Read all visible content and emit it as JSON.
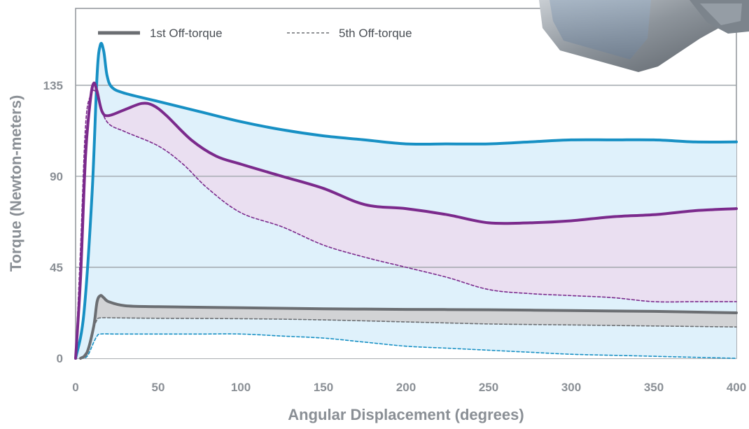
{
  "chart_data": {
    "type": "line",
    "title": "",
    "xlabel": "Angular Displacement (degrees)",
    "ylabel": "Torque (Newton-meters)",
    "xlim": [
      0,
      400
    ],
    "ylim": [
      0,
      135
    ],
    "x_ticks": [
      "0",
      "50",
      "100",
      "150",
      "200",
      "250",
      "300",
      "350",
      "400"
    ],
    "y_ticks": [
      "0",
      "45",
      "90",
      "135"
    ],
    "grid": "horizontal",
    "legend": {
      "placement": "top-left",
      "items": [
        {
          "label": "1st Off-torque",
          "style": "solid"
        },
        {
          "label": "5th Off-torque",
          "style": "dashed"
        }
      ]
    },
    "colors": {
      "blue": "#1790c4",
      "purple": "#7b2a8c",
      "gray": "#6b6e72"
    },
    "series": [
      {
        "color": "#1790c4",
        "style": "solid",
        "fill": "#dff1fb",
        "points": [
          [
            0,
            0
          ],
          [
            5,
            22
          ],
          [
            10,
            82
          ],
          [
            13,
            140
          ],
          [
            15,
            155
          ],
          [
            17,
            152
          ],
          [
            19,
            140
          ],
          [
            22,
            134
          ],
          [
            30,
            131
          ],
          [
            50,
            127
          ],
          [
            75,
            122
          ],
          [
            100,
            117
          ],
          [
            125,
            113
          ],
          [
            150,
            110
          ],
          [
            175,
            108
          ],
          [
            200,
            106
          ],
          [
            225,
            106
          ],
          [
            250,
            106
          ],
          [
            275,
            107
          ],
          [
            300,
            108
          ],
          [
            325,
            108
          ],
          [
            350,
            108
          ],
          [
            375,
            107
          ],
          [
            400,
            107
          ]
        ]
      },
      {
        "color": "#1790c4",
        "style": "dashed",
        "fill_to": 0,
        "points": [
          [
            3,
            0
          ],
          [
            7,
            1
          ],
          [
            11,
            8
          ],
          [
            13,
            11
          ],
          [
            15,
            12
          ],
          [
            25,
            12
          ],
          [
            50,
            12
          ],
          [
            75,
            12
          ],
          [
            100,
            12
          ],
          [
            125,
            11
          ],
          [
            150,
            10
          ],
          [
            175,
            8
          ],
          [
            200,
            6
          ],
          [
            225,
            5
          ],
          [
            250,
            4
          ],
          [
            275,
            3
          ],
          [
            300,
            2
          ],
          [
            325,
            1.5
          ],
          [
            350,
            1
          ],
          [
            375,
            0.5
          ],
          [
            400,
            0
          ]
        ]
      },
      {
        "color": "#7b2a8c",
        "style": "solid",
        "fill": "#eadff1",
        "points": [
          [
            0,
            0
          ],
          [
            3,
            40
          ],
          [
            6,
            100
          ],
          [
            9,
            128
          ],
          [
            11,
            136
          ],
          [
            13,
            132
          ],
          [
            16,
            122
          ],
          [
            20,
            120
          ],
          [
            30,
            123
          ],
          [
            40,
            126
          ],
          [
            47,
            125
          ],
          [
            55,
            120
          ],
          [
            70,
            108
          ],
          [
            85,
            100
          ],
          [
            100,
            96
          ],
          [
            125,
            90
          ],
          [
            150,
            84
          ],
          [
            175,
            76
          ],
          [
            200,
            74
          ],
          [
            225,
            71
          ],
          [
            250,
            67
          ],
          [
            275,
            67
          ],
          [
            300,
            68
          ],
          [
            325,
            70
          ],
          [
            350,
            71
          ],
          [
            375,
            73
          ],
          [
            400,
            74
          ]
        ]
      },
      {
        "color": "#7b2a8c",
        "style": "dashed",
        "points": [
          [
            0,
            0
          ],
          [
            3,
            55
          ],
          [
            6,
            115
          ],
          [
            9,
            130
          ],
          [
            12,
            132
          ],
          [
            15,
            124
          ],
          [
            20,
            116
          ],
          [
            30,
            112
          ],
          [
            50,
            105
          ],
          [
            65,
            96
          ],
          [
            80,
            84
          ],
          [
            100,
            72
          ],
          [
            125,
            65
          ],
          [
            150,
            56
          ],
          [
            175,
            50
          ],
          [
            200,
            45
          ],
          [
            225,
            40
          ],
          [
            250,
            34
          ],
          [
            275,
            32
          ],
          [
            300,
            31
          ],
          [
            325,
            30
          ],
          [
            350,
            28
          ],
          [
            375,
            28
          ],
          [
            400,
            28
          ]
        ]
      },
      {
        "color": "#6b6e72",
        "style": "solid",
        "fill": "#d2d3d5",
        "points": [
          [
            3,
            0
          ],
          [
            7,
            3
          ],
          [
            11,
            16
          ],
          [
            13,
            28
          ],
          [
            15,
            31
          ],
          [
            17,
            30
          ],
          [
            20,
            28
          ],
          [
            30,
            26
          ],
          [
            50,
            25.5
          ],
          [
            100,
            25
          ],
          [
            150,
            24.5
          ],
          [
            200,
            24.2
          ],
          [
            250,
            24
          ],
          [
            300,
            23.6
          ],
          [
            350,
            23.2
          ],
          [
            400,
            22.5
          ]
        ]
      },
      {
        "color": "#6b6e72",
        "style": "dashed",
        "points": [
          [
            3,
            0
          ],
          [
            7,
            4
          ],
          [
            11,
            15
          ],
          [
            13,
            19
          ],
          [
            15,
            20
          ],
          [
            25,
            20
          ],
          [
            50,
            19.8
          ],
          [
            100,
            19.6
          ],
          [
            150,
            19
          ],
          [
            200,
            18
          ],
          [
            250,
            17
          ],
          [
            300,
            16.5
          ],
          [
            350,
            16
          ],
          [
            400,
            15.5
          ]
        ]
      }
    ]
  }
}
